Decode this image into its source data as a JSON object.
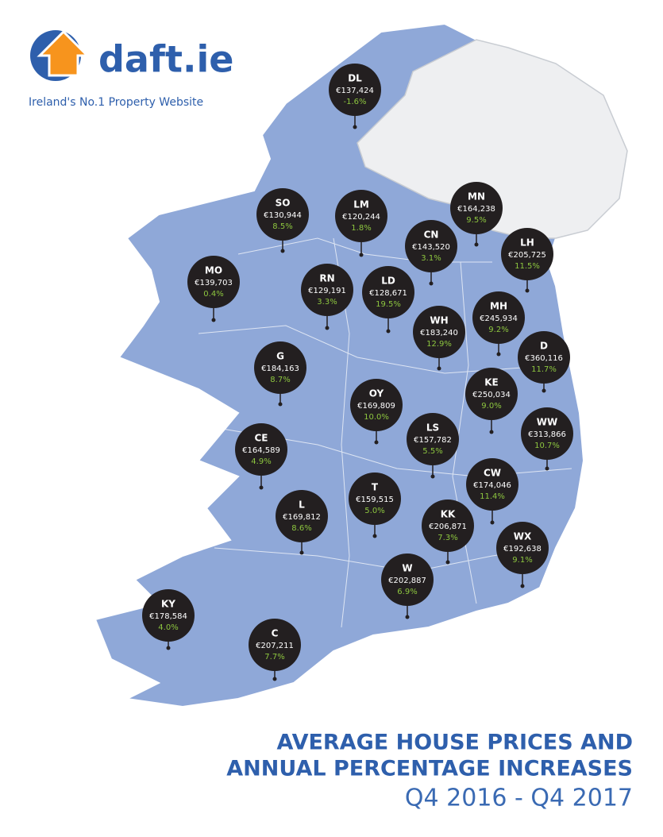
{
  "logo": {
    "name": "daft.ie",
    "tagline": "Ireland's No.1 Property Website"
  },
  "title": {
    "line1": "AVERAGE HOUSE PRICES AND",
    "line2": "ANNUAL PERCENTAGE INCREASES",
    "period": "Q4 2016 - Q4  2017"
  },
  "pins": [
    {
      "code": "DL",
      "price": "€137,424",
      "change": "-1.6%"
    },
    {
      "code": "SO",
      "price": "€130,944",
      "change": "8.5%"
    },
    {
      "code": "LM",
      "price": "€120,244",
      "change": "1.8%"
    },
    {
      "code": "MN",
      "price": "€164,238",
      "change": "9.5%"
    },
    {
      "code": "CN",
      "price": "€143,520",
      "change": "3.1%"
    },
    {
      "code": "LH",
      "price": "€205,725",
      "change": "11.5%"
    },
    {
      "code": "MO",
      "price": "€139,703",
      "change": "0.4%"
    },
    {
      "code": "RN",
      "price": "€129,191",
      "change": "3.3%"
    },
    {
      "code": "LD",
      "price": "€128,671",
      "change": "19.5%"
    },
    {
      "code": "WH",
      "price": "€183,240",
      "change": "12.9%"
    },
    {
      "code": "MH",
      "price": "€245,934",
      "change": "9.2%"
    },
    {
      "code": "D",
      "price": "€360,116",
      "change": "11.7%"
    },
    {
      "code": "G",
      "price": "€184,163",
      "change": "8.7%"
    },
    {
      "code": "KE",
      "price": "€250,034",
      "change": "9.0%"
    },
    {
      "code": "OY",
      "price": "€169,809",
      "change": "10.0%"
    },
    {
      "code": "WW",
      "price": "€313,866",
      "change": "10.7%"
    },
    {
      "code": "LS",
      "price": "€157,782",
      "change": "5.5%"
    },
    {
      "code": "CE",
      "price": "€164,589",
      "change": "4.9%"
    },
    {
      "code": "CW",
      "price": "€174,046",
      "change": "11.4%"
    },
    {
      "code": "T",
      "price": "€159,515",
      "change": "5.0%"
    },
    {
      "code": "L",
      "price": "€169,812",
      "change": "8.6%"
    },
    {
      "code": "KK",
      "price": "€206,871",
      "change": "7.3%"
    },
    {
      "code": "WX",
      "price": "€192,638",
      "change": "9.1%"
    },
    {
      "code": "W",
      "price": "€202,887",
      "change": "6.9%"
    },
    {
      "code": "KY",
      "price": "€178,584",
      "change": "4.0%"
    },
    {
      "code": "C",
      "price": "€207,211",
      "change": "7.7%"
    }
  ]
}
